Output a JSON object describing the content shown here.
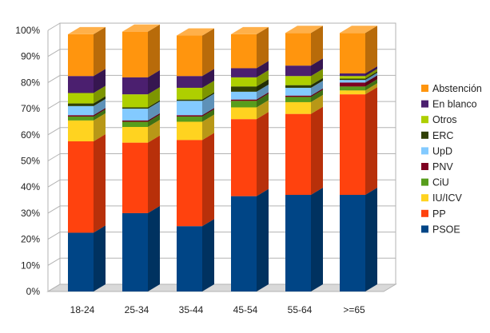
{
  "chart_data": {
    "type": "bar",
    "stacked": true,
    "three_d": true,
    "categories": [
      "18-24",
      "25-34",
      "35-44",
      "45-54",
      "55-64",
      ">=65"
    ],
    "ylim": [
      0,
      100
    ],
    "y_ticks": [
      "0%",
      "10%",
      "20%",
      "30%",
      "40%",
      "50%",
      "60%",
      "70%",
      "80%",
      "90%",
      "100%"
    ],
    "grid": true,
    "legend_position": "right",
    "series": [
      {
        "name": "PSOE",
        "color": "#004586",
        "values": [
          22.5,
          30,
          25,
          36.5,
          37,
          37
        ]
      },
      {
        "name": "PP",
        "color": "#FF420E",
        "values": [
          35,
          27,
          33,
          29.5,
          31,
          38.5
        ]
      },
      {
        "name": "IU/ICV",
        "color": "#FFD320",
        "values": [
          8,
          6,
          7,
          4.5,
          4.5,
          1.5
        ]
      },
      {
        "name": "CiU",
        "color": "#579D1C",
        "values": [
          1.5,
          2,
          2,
          2.5,
          2,
          1.5
        ]
      },
      {
        "name": "PNV",
        "color": "#7E0021",
        "values": [
          0.5,
          0.5,
          0.5,
          0.5,
          0.5,
          1.5
        ]
      },
      {
        "name": "UpD",
        "color": "#83CAFF",
        "values": [
          3.5,
          4.5,
          5.5,
          3,
          3,
          1
        ]
      },
      {
        "name": "ERC",
        "color": "#314004",
        "values": [
          1,
          0.5,
          0.5,
          2,
          1,
          0.5
        ]
      },
      {
        "name": "Otros",
        "color": "#AECF00",
        "values": [
          4,
          5,
          4.5,
          3.5,
          3.5,
          1
        ]
      },
      {
        "name": "En blanco",
        "color": "#4B1F6F",
        "values": [
          6.5,
          6.5,
          4.5,
          3.5,
          4,
          1
        ]
      },
      {
        "name": "Abstención",
        "color": "#FF950E",
        "values": [
          16,
          17.5,
          15.5,
          13,
          12.5,
          15.5
        ]
      }
    ]
  }
}
